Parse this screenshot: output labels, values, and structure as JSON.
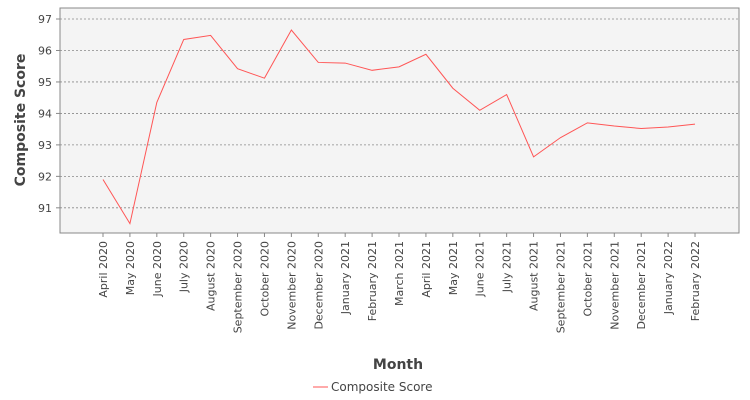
{
  "chart_data": {
    "type": "line",
    "title": "",
    "xlabel": "Month",
    "ylabel": "Composite Score",
    "categories": [
      "April 2020",
      "May 2020",
      "June 2020",
      "July 2020",
      "August 2020",
      "September 2020",
      "October 2020",
      "November 2020",
      "December 2020",
      "January 2021",
      "February 2021",
      "March 2021",
      "April 2021",
      "May 2021",
      "June 2021",
      "July 2021",
      "August 2021",
      "September 2021",
      "October 2021",
      "November 2021",
      "December 2021",
      "January 2022",
      "February 2022"
    ],
    "series": [
      {
        "name": "Composite Score",
        "color": "#ff5555",
        "values": [
          91.9,
          90.5,
          94.35,
          96.35,
          96.48,
          95.42,
          95.12,
          96.65,
          95.62,
          95.6,
          95.37,
          95.48,
          95.88,
          94.8,
          94.1,
          94.6,
          92.62,
          93.23,
          93.7,
          93.6,
          93.52,
          93.57,
          93.66
        ]
      }
    ],
    "ylim": [
      90.2,
      97.35
    ],
    "yticks": [
      "91",
      "92",
      "93",
      "94",
      "95",
      "96",
      "97"
    ],
    "grid": true,
    "legend": "bottom"
  }
}
